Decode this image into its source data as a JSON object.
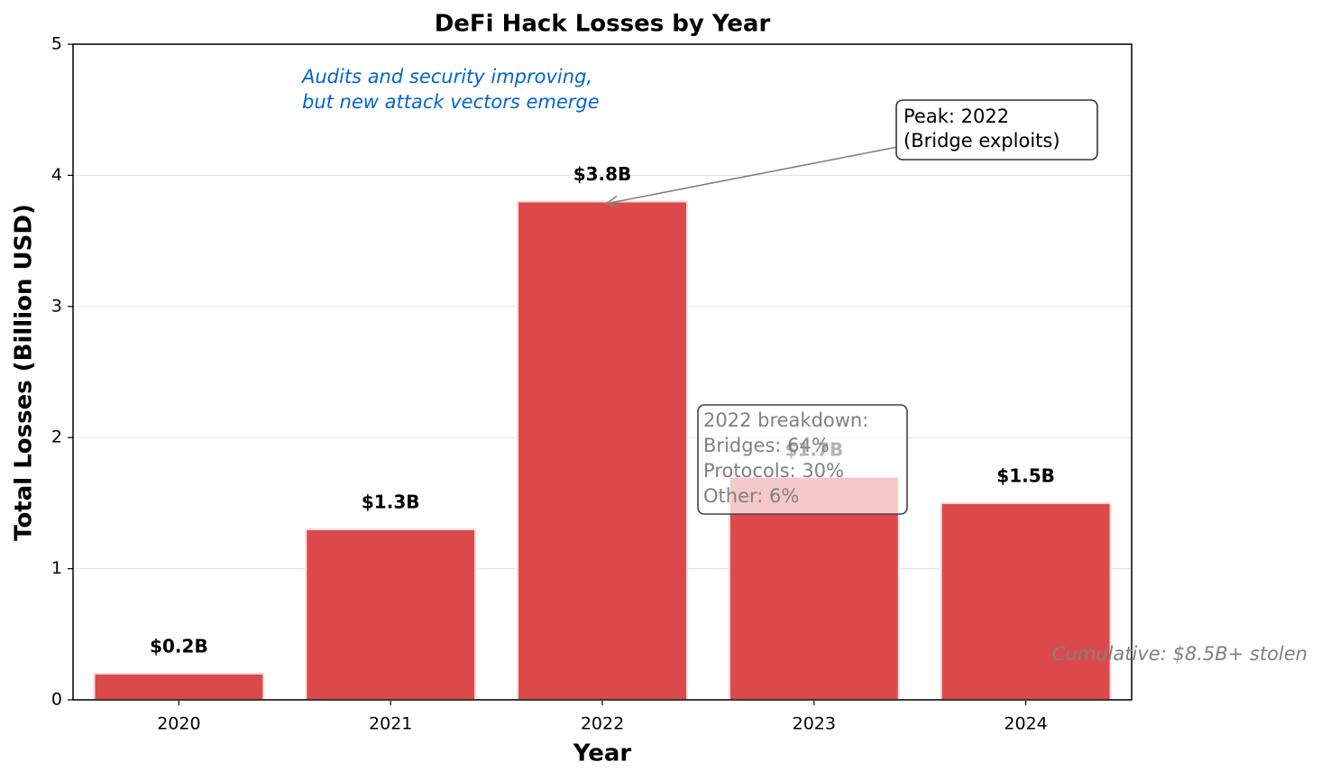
{
  "chart_data": {
    "type": "bar",
    "title": "DeFi Hack Losses by Year",
    "xlabel": "Year",
    "ylabel": "Total Losses (Billion USD)",
    "categories": [
      "2020",
      "2021",
      "2022",
      "2023",
      "2024"
    ],
    "values": [
      0.2,
      1.3,
      3.8,
      1.7,
      1.5
    ],
    "value_labels": [
      "$0.2B",
      "$1.3B",
      "$3.8B",
      "$1.7B",
      "$1.5B"
    ],
    "color": "#dc494a",
    "ylim": [
      0,
      5
    ],
    "yticks": [
      0,
      1,
      2,
      3,
      4,
      5
    ],
    "grid": true,
    "annotations": {
      "note": [
        "Audits and security improving,",
        "but new attack vectors emerge"
      ],
      "peak": [
        "Peak: 2022",
        "(Bridge exploits)"
      ],
      "breakdown": [
        "2022 breakdown:",
        "Bridges: 64%",
        "Protocols: 30%",
        "Other: 6%"
      ],
      "cumulative": "Cumulative: $8.5B+ stolen"
    }
  }
}
